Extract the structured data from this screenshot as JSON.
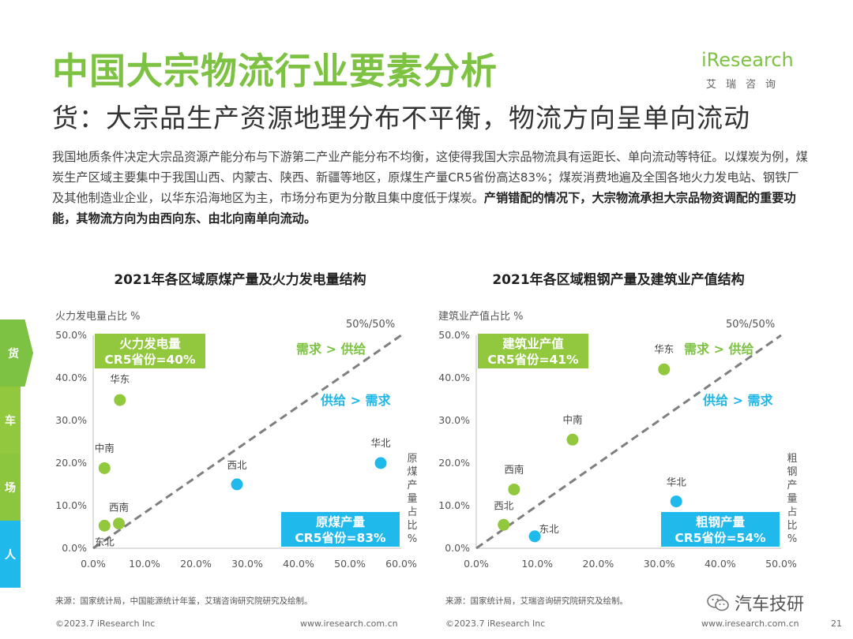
{
  "header": {
    "title": "中国大宗物流行业要素分析",
    "subtitle": "货：大宗品生产资源地理分布不平衡，物流方向呈单向流动",
    "logo_text": "iResearch",
    "logo_sub": "艾瑞咨询"
  },
  "body": {
    "text": "我国地质条件决定大宗品资源产能分布与下游第二产业产能分布不均衡，这使得我国大宗品物流具有运距长、单向流动等特征。以煤炭为例，煤炭生产区域主要集中于我国山西、内蒙古、陕西、新疆等地区，原煤生产量CR5省份高达83%；煤炭消费地遍及全国各地火力发电站、钢铁厂及其他制造业企业，以华东沿海地区为主，市场分布更为分散且集中度低于煤炭。",
    "bold": "产销错配的情况下，大宗物流承担大宗品物资调配的重要功能，其物流方向为由西向东、由北向南单向流动。"
  },
  "side_tabs": [
    "货",
    "车",
    "场",
    "人"
  ],
  "chart_data": [
    {
      "type": "scatter",
      "title": "2021年各区域原煤产量及火力发电量结构",
      "ylabel": "火力发电量占比 %",
      "xlabel": "原煤产量占比%",
      "xlim": [
        0,
        60
      ],
      "ylim": [
        0,
        50
      ],
      "x_ticks": [
        "0.0%",
        "10.0%",
        "20.0%",
        "30.0%",
        "40.0%",
        "50.0%",
        "60.0%"
      ],
      "y_ticks": [
        "0.0%",
        "10.0%",
        "20.0%",
        "30.0%",
        "40.0%",
        "50.0%"
      ],
      "diagonal_label": "50%/50%",
      "demand_label": "需求 > 供给",
      "supply_label": "供给 > 需求",
      "green_box": [
        "火力发电量",
        "CR5省份=40%"
      ],
      "blue_box": [
        "原煤产量",
        "CR5省份=83%"
      ],
      "points": [
        {
          "name": "华东",
          "x": 5.2,
          "y": 34.8,
          "group": "green"
        },
        {
          "name": "中南",
          "x": 2.2,
          "y": 18.8,
          "group": "green"
        },
        {
          "name": "西南",
          "x": 5.0,
          "y": 5.8,
          "group": "green"
        },
        {
          "name": "东北",
          "x": 2.2,
          "y": 5.3,
          "group": "green"
        },
        {
          "name": "西北",
          "x": 28.0,
          "y": 15.0,
          "group": "blue"
        },
        {
          "name": "华北",
          "x": 56.0,
          "y": 20.0,
          "group": "blue"
        }
      ],
      "colors": {
        "green": "#92c83e",
        "blue": "#20b9ec"
      }
    },
    {
      "type": "scatter",
      "title": "2021年各区域粗钢产量及建筑业产值结构",
      "ylabel": "建筑业产值占比 %",
      "xlabel": "粗钢产量占比%",
      "xlim": [
        0,
        50
      ],
      "ylim": [
        0,
        50
      ],
      "x_ticks": [
        "0.0%",
        "10.0%",
        "20.0%",
        "30.0%",
        "40.0%",
        "50.0%"
      ],
      "y_ticks": [
        "0.0%",
        "10.0%",
        "20.0%",
        "30.0%",
        "40.0%",
        "50.0%"
      ],
      "diagonal_label": "50%/50%",
      "demand_label": "需求 > 供给",
      "supply_label": "供给 > 需求",
      "green_box": [
        "建筑业产值",
        "CR5省份=41%"
      ],
      "blue_box": [
        "粗钢产量",
        "CR5省份=54%"
      ],
      "points": [
        {
          "name": "华东",
          "x": 30.8,
          "y": 42.0,
          "group": "green"
        },
        {
          "name": "中南",
          "x": 15.8,
          "y": 25.5,
          "group": "green"
        },
        {
          "name": "西南",
          "x": 6.2,
          "y": 13.8,
          "group": "green"
        },
        {
          "name": "西北",
          "x": 4.5,
          "y": 5.5,
          "group": "green"
        },
        {
          "name": "东北",
          "x": 9.6,
          "y": 2.8,
          "group": "blue"
        },
        {
          "name": "华北",
          "x": 32.8,
          "y": 11.0,
          "group": "blue"
        }
      ],
      "colors": {
        "green": "#92c83e",
        "blue": "#20b9ec"
      }
    }
  ],
  "sources": [
    "来源：国家统计局，中国能源统计年鉴，艾瑞咨询研究院研究及绘制。",
    "来源：国家统计局，艾瑞咨询研究院研究及绘制。"
  ],
  "footer": {
    "copyright": "©2023.7 iResearch Inc",
    "url": "www.iresearch.com.cn",
    "page": "21",
    "watermark": "汽车技研"
  }
}
